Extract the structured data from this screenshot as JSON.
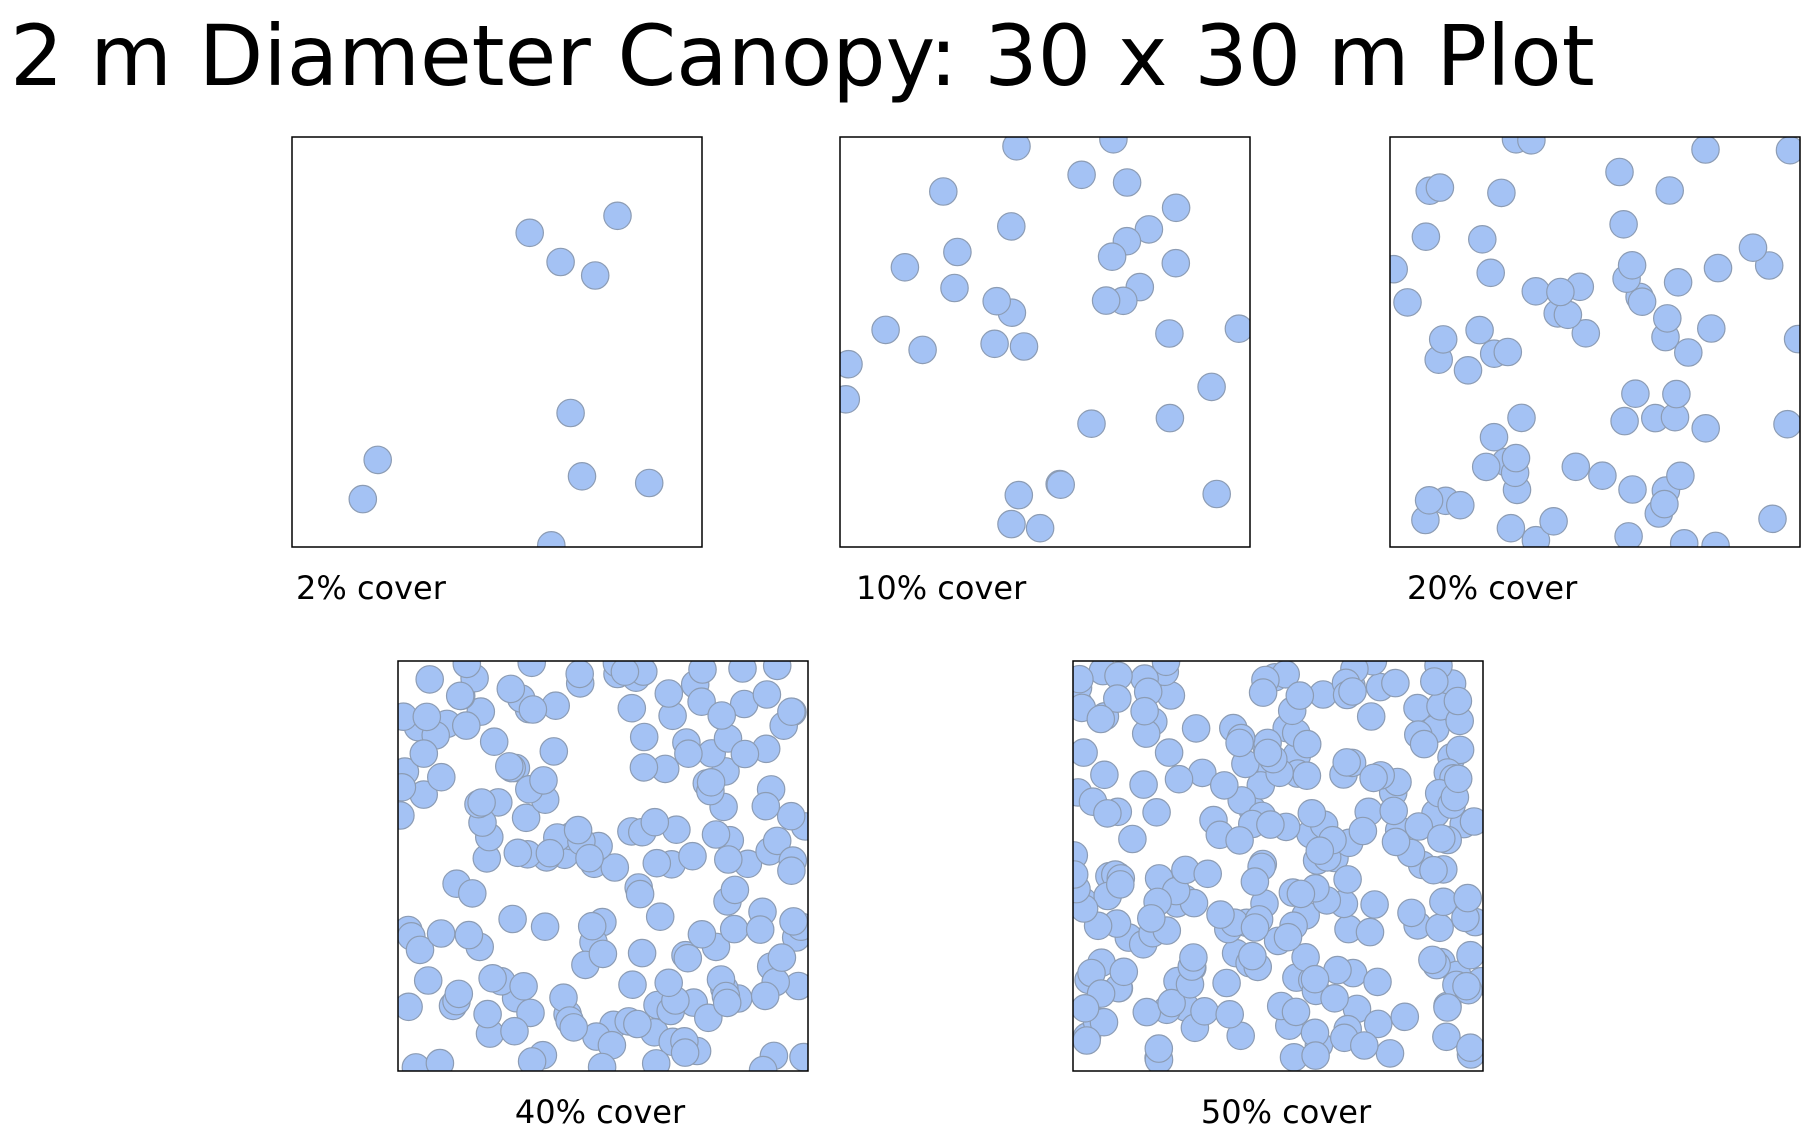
{
  "title": "2 m Diameter Canopy: 30 x 30 m Plot",
  "panels": [
    {
      "label": "2% cover"
    },
    {
      "label": "10% cover"
    },
    {
      "label": "20% cover"
    },
    {
      "label": "40% cover"
    },
    {
      "label": "50% cover"
    }
  ]
}
